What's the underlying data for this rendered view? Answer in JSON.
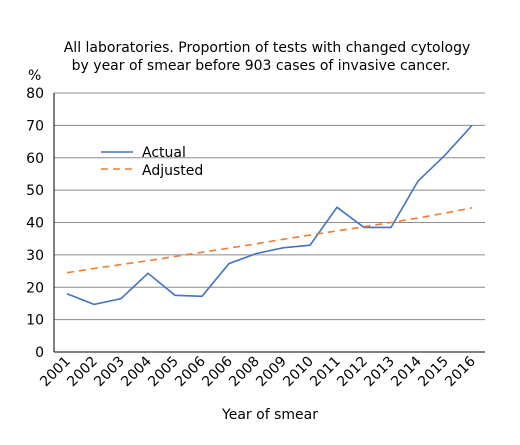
{
  "chart_data": {
    "type": "line",
    "title_lines": [
      "All laboratories. Proportion of tests with changed cytology",
      "by year of smear before 903 cases of invasive cancer."
    ],
    "ylabel": "%",
    "xlabel": "Year of smear",
    "ylim": [
      0,
      80
    ],
    "yticks": [
      0,
      10,
      20,
      30,
      40,
      50,
      60,
      70,
      80
    ],
    "grid": true,
    "legend_position": "upper-left",
    "categories": [
      "2001",
      "2002",
      "2003",
      "2004",
      "2005",
      "2006",
      "2006",
      "2008",
      "2009",
      "2010",
      "2011",
      "2012",
      "2013",
      "2014",
      "2015",
      "2016"
    ],
    "series": [
      {
        "name": "Actual",
        "style": "solid",
        "color": "#4472c4",
        "values": [
          18,
          14.7,
          16.5,
          24.3,
          17.5,
          17.2,
          27.3,
          30.4,
          32.2,
          33,
          44.7,
          38.5,
          38.5,
          52.8,
          60.8,
          70
        ]
      },
      {
        "name": "Adjusted",
        "style": "dashed",
        "color": "#ed7d31",
        "values": [
          24.5,
          25.8,
          27,
          28.2,
          29.5,
          30.8,
          32.1,
          33.4,
          34.8,
          36.1,
          37.4,
          38.7,
          40,
          41.4,
          42.9,
          44.5
        ]
      }
    ]
  }
}
